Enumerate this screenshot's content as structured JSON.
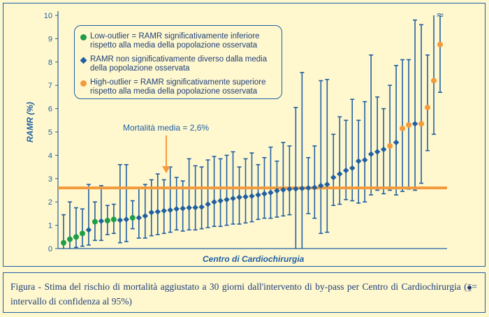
{
  "legend": {
    "low": "Low-outlier = RAMR significativamente inferiore rispetto alla media della popolazione osservata",
    "mid": "RAMR  non significativamente diverso dalla media della popolazione osservata",
    "high": "High-outlier = RAMR significativamente superiore rispetto alla media della popolazione osservata"
  },
  "mean_label": "Mortalità media = 2,6%",
  "caption": {
    "lead": "Figura",
    "text_before": " - Stima del rischio di   mortalità aggiustato a 30 giorni dall'intervento di by-pass per Centro di Cardiochirurgia (",
    "glyph": "⧳",
    "text_after": "= intervallo di confidenza al 95%)"
  },
  "colors": {
    "low": "#1e9e48",
    "mid": "#1f5fa3",
    "high": "#f39a3c",
    "mean_line": "#f39a3c",
    "axis": "#1f5fa3"
  },
  "chart_data": {
    "type": "scatter",
    "xlabel": "Centro di Cardiochirurgia",
    "ylabel": "RAMR (%)",
    "ylim": [
      0,
      10
    ],
    "yticks": [
      "0",
      "1",
      "2",
      "3",
      "4",
      "5",
      "6",
      "7",
      "8",
      "9",
      "10"
    ],
    "mean": 2.6,
    "break_marks": "≈",
    "centers": [
      {
        "v": 0.25,
        "lo": 0.0,
        "hi": 1.45,
        "g": "low"
      },
      {
        "v": 0.4,
        "lo": 0.0,
        "hi": 2.0,
        "g": "low"
      },
      {
        "v": 0.5,
        "lo": 0.05,
        "hi": 1.75,
        "g": "low"
      },
      {
        "v": 0.65,
        "lo": 0.1,
        "hi": 1.7,
        "g": "low"
      },
      {
        "v": 0.8,
        "lo": 0.15,
        "hi": 2.75,
        "g": "mid"
      },
      {
        "v": 1.15,
        "lo": 0.35,
        "hi": 2.0,
        "g": "low"
      },
      {
        "v": 1.18,
        "lo": 0.35,
        "hi": 2.7,
        "g": "mid"
      },
      {
        "v": 1.2,
        "lo": 0.6,
        "hi": 1.85,
        "g": "low"
      },
      {
        "v": 1.25,
        "lo": 0.65,
        "hi": 1.9,
        "g": "low"
      },
      {
        "v": 1.22,
        "lo": 0.25,
        "hi": 3.6,
        "g": "mid"
      },
      {
        "v": 1.25,
        "lo": 0.3,
        "hi": 3.6,
        "g": "mid"
      },
      {
        "v": 1.32,
        "lo": 0.85,
        "hi": 2.05,
        "g": "low"
      },
      {
        "v": 1.32,
        "lo": 0.45,
        "hi": 2.6,
        "g": "mid"
      },
      {
        "v": 1.4,
        "lo": 0.45,
        "hi": 2.75,
        "g": "mid"
      },
      {
        "v": 1.55,
        "lo": 0.55,
        "hi": 2.95,
        "g": "mid"
      },
      {
        "v": 1.58,
        "lo": 0.6,
        "hi": 3.2,
        "g": "mid"
      },
      {
        "v": 1.62,
        "lo": 0.65,
        "hi": 2.95,
        "g": "mid"
      },
      {
        "v": 1.65,
        "lo": 0.7,
        "hi": 3.5,
        "g": "mid"
      },
      {
        "v": 1.7,
        "lo": 0.8,
        "hi": 3.05,
        "g": "mid"
      },
      {
        "v": 1.72,
        "lo": 0.75,
        "hi": 2.9,
        "g": "mid"
      },
      {
        "v": 1.75,
        "lo": 0.8,
        "hi": 3.85,
        "g": "mid"
      },
      {
        "v": 1.76,
        "lo": 0.8,
        "hi": 3.55,
        "g": "mid"
      },
      {
        "v": 1.78,
        "lo": 0.85,
        "hi": 3.5,
        "g": "mid"
      },
      {
        "v": 1.9,
        "lo": 0.9,
        "hi": 3.8,
        "g": "mid"
      },
      {
        "v": 2.0,
        "lo": 0.95,
        "hi": 3.95,
        "g": "mid"
      },
      {
        "v": 2.05,
        "lo": 0.95,
        "hi": 3.85,
        "g": "mid"
      },
      {
        "v": 2.1,
        "lo": 1.0,
        "hi": 4.0,
        "g": "mid"
      },
      {
        "v": 2.15,
        "lo": 1.05,
        "hi": 4.15,
        "g": "mid"
      },
      {
        "v": 2.2,
        "lo": 1.05,
        "hi": 3.5,
        "g": "mid"
      },
      {
        "v": 2.22,
        "lo": 1.1,
        "hi": 3.85,
        "g": "mid"
      },
      {
        "v": 2.25,
        "lo": 1.15,
        "hi": 4.1,
        "g": "mid"
      },
      {
        "v": 2.3,
        "lo": 1.25,
        "hi": 3.6,
        "g": "mid"
      },
      {
        "v": 2.35,
        "lo": 1.3,
        "hi": 3.9,
        "g": "mid"
      },
      {
        "v": 2.4,
        "lo": 1.3,
        "hi": 4.35,
        "g": "mid"
      },
      {
        "v": 2.48,
        "lo": 1.35,
        "hi": 3.75,
        "g": "mid"
      },
      {
        "v": 2.52,
        "lo": 1.4,
        "hi": 4.55,
        "g": "mid"
      },
      {
        "v": 2.55,
        "lo": 1.45,
        "hi": 4.4,
        "g": "mid"
      },
      {
        "v": 2.56,
        "lo": 0.0,
        "hi": 6.05,
        "g": "mid"
      },
      {
        "v": 2.58,
        "lo": 0.0,
        "hi": 7.55,
        "g": "mid"
      },
      {
        "v": 2.6,
        "lo": 1.5,
        "hi": 3.9,
        "g": "mid"
      },
      {
        "v": 2.62,
        "lo": 1.3,
        "hi": 4.4,
        "g": "mid"
      },
      {
        "v": 2.7,
        "lo": 0.65,
        "hi": 7.2,
        "g": "mid"
      },
      {
        "v": 2.75,
        "lo": 0.7,
        "hi": 7.25,
        "g": "mid"
      },
      {
        "v": 3.05,
        "lo": 1.85,
        "hi": 4.9,
        "g": "mid"
      },
      {
        "v": 3.2,
        "lo": 1.9,
        "hi": 5.65,
        "g": "mid"
      },
      {
        "v": 3.35,
        "lo": 2.1,
        "hi": 5.5,
        "g": "mid"
      },
      {
        "v": 3.45,
        "lo": 2.05,
        "hi": 6.4,
        "g": "mid"
      },
      {
        "v": 3.75,
        "lo": 1.95,
        "hi": 5.5,
        "g": "mid"
      },
      {
        "v": 3.8,
        "lo": 2.0,
        "hi": 6.3,
        "g": "mid"
      },
      {
        "v": 4.05,
        "lo": 2.3,
        "hi": 8.3,
        "g": "mid"
      },
      {
        "v": 4.15,
        "lo": 2.5,
        "hi": 6.5,
        "g": "mid"
      },
      {
        "v": 4.25,
        "lo": 2.35,
        "hi": 6.0,
        "g": "mid"
      },
      {
        "v": 4.4,
        "lo": 2.5,
        "hi": 7.0,
        "g": "high"
      },
      {
        "v": 4.55,
        "lo": 2.3,
        "hi": 7.85,
        "g": "mid"
      },
      {
        "v": 5.15,
        "lo": 2.45,
        "hi": 8.1,
        "g": "high"
      },
      {
        "v": 5.3,
        "lo": 2.55,
        "hi": 8.1,
        "g": "high"
      },
      {
        "v": 5.35,
        "lo": 2.5,
        "hi": 9.8,
        "g": "mid"
      },
      {
        "v": 5.35,
        "lo": 2.8,
        "hi": 9.6,
        "g": "high"
      },
      {
        "v": 6.05,
        "lo": 4.2,
        "hi": 8.3,
        "g": "high"
      },
      {
        "v": 7.2,
        "lo": 4.9,
        "hi": 10.0,
        "g": "high"
      },
      {
        "v": 8.75,
        "lo": 6.7,
        "hi": 10.0,
        "g": "high"
      }
    ]
  }
}
